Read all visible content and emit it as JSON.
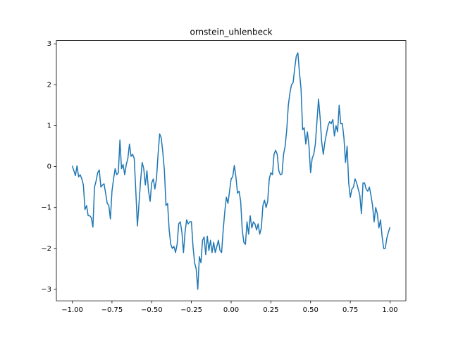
{
  "chart_data": {
    "type": "line",
    "title": "ornstein_uhlenbeck",
    "color": "#1f77b4",
    "xlim": [
      -1.1,
      1.1
    ],
    "ylim": [
      -3.28,
      3.08
    ],
    "xticks": [
      {
        "value": -1,
        "label": "−1.00"
      },
      {
        "value": -0.75,
        "label": "−0.75"
      },
      {
        "value": -0.5,
        "label": "−0.50"
      },
      {
        "value": -0.25,
        "label": "−0.25"
      },
      {
        "value": 0,
        "label": "0.00"
      },
      {
        "value": 0.25,
        "label": "0.25"
      },
      {
        "value": 0.5,
        "label": "0.50"
      },
      {
        "value": 0.75,
        "label": "0.75"
      },
      {
        "value": 1,
        "label": "1.00"
      }
    ],
    "yticks": [
      {
        "value": -3,
        "label": "−3"
      },
      {
        "value": -2,
        "label": "−2"
      },
      {
        "value": -1,
        "label": "−1"
      },
      0,
      1,
      2,
      3
    ],
    "x": [
      -1.0,
      -0.99,
      -0.98,
      -0.97,
      -0.96,
      -0.95,
      -0.94,
      -0.93,
      -0.92,
      -0.91,
      -0.9,
      -0.89,
      -0.88,
      -0.87,
      -0.86,
      -0.85,
      -0.84,
      -0.83,
      -0.82,
      -0.81,
      -0.8,
      -0.79,
      -0.78,
      -0.77,
      -0.76,
      -0.75,
      -0.74,
      -0.73,
      -0.72,
      -0.71,
      -0.7,
      -0.69,
      -0.68,
      -0.67,
      -0.66,
      -0.65,
      -0.64,
      -0.63,
      -0.62,
      -0.61,
      -0.6,
      -0.59,
      -0.58,
      -0.57,
      -0.56,
      -0.55,
      -0.54,
      -0.53,
      -0.52,
      -0.51,
      -0.5,
      -0.49,
      -0.48,
      -0.47,
      -0.46,
      -0.45,
      -0.44,
      -0.43,
      -0.42,
      -0.41,
      -0.4,
      -0.39,
      -0.38,
      -0.37,
      -0.36,
      -0.35,
      -0.34,
      -0.33,
      -0.32,
      -0.31,
      -0.3,
      -0.29,
      -0.28,
      -0.27,
      -0.26,
      -0.25,
      -0.24,
      -0.23,
      -0.22,
      -0.21,
      -0.2,
      -0.19,
      -0.18,
      -0.17,
      -0.16,
      -0.15,
      -0.14,
      -0.13,
      -0.12,
      -0.11,
      -0.1,
      -0.09,
      -0.08,
      -0.07,
      -0.06,
      -0.05,
      -0.04,
      -0.03,
      -0.02,
      -0.01,
      0.0,
      0.01,
      0.02,
      0.03,
      0.04,
      0.05,
      0.06,
      0.07,
      0.08,
      0.09,
      0.1,
      0.11,
      0.12,
      0.13,
      0.14,
      0.15,
      0.16,
      0.17,
      0.18,
      0.19,
      0.2,
      0.21,
      0.22,
      0.23,
      0.24,
      0.25,
      0.26,
      0.27,
      0.28,
      0.29,
      0.3,
      0.31,
      0.32,
      0.33,
      0.34,
      0.35,
      0.36,
      0.37,
      0.38,
      0.39,
      0.4,
      0.41,
      0.42,
      0.43,
      0.44,
      0.45,
      0.46,
      0.47,
      0.48,
      0.49,
      0.5,
      0.51,
      0.52,
      0.53,
      0.54,
      0.55,
      0.56,
      0.57,
      0.58,
      0.59,
      0.6,
      0.61,
      0.62,
      0.63,
      0.64,
      0.65,
      0.66,
      0.67,
      0.68,
      0.69,
      0.7,
      0.71,
      0.72,
      0.73,
      0.74,
      0.75,
      0.76,
      0.77,
      0.78,
      0.79,
      0.8,
      0.81,
      0.82,
      0.83,
      0.84,
      0.85,
      0.86,
      0.87,
      0.88,
      0.89,
      0.9,
      0.91,
      0.92,
      0.93,
      0.94,
      0.95,
      0.96,
      0.97,
      0.98,
      0.99,
      1.0
    ],
    "values": [
      0.02,
      -0.1,
      -0.22,
      0.02,
      -0.25,
      -0.2,
      -0.3,
      -0.45,
      -1.05,
      -0.95,
      -1.2,
      -1.2,
      -1.25,
      -1.48,
      -0.5,
      -0.35,
      -0.15,
      -0.08,
      -0.5,
      -0.45,
      -0.42,
      -0.65,
      -0.9,
      -0.95,
      -1.28,
      -0.6,
      -0.3,
      -0.05,
      -0.2,
      -0.15,
      0.65,
      -0.05,
      0.05,
      -0.2,
      0.05,
      0.2,
      0.55,
      0.25,
      0.3,
      0.2,
      -0.6,
      -1.45,
      -0.9,
      -0.35,
      0.1,
      -0.05,
      -0.45,
      -0.1,
      -0.6,
      -0.85,
      -0.4,
      -0.3,
      -0.55,
      -0.3,
      0.3,
      0.8,
      0.7,
      0.35,
      -0.1,
      -0.95,
      -0.9,
      -1.55,
      -1.9,
      -2.0,
      -1.95,
      -2.1,
      -1.9,
      -1.4,
      -1.35,
      -1.6,
      -2.1,
      -1.6,
      -1.3,
      -1.4,
      -1.35,
      -1.35,
      -1.95,
      -2.35,
      -2.5,
      -3.0,
      -2.2,
      -2.35,
      -1.8,
      -1.72,
      -2.15,
      -1.7,
      -2.05,
      -1.8,
      -2.1,
      -1.85,
      -2.1,
      -1.95,
      -1.8,
      -2.05,
      -2.1,
      -1.55,
      -1.1,
      -0.75,
      -0.9,
      -0.6,
      -0.3,
      -0.25,
      0.03,
      -0.25,
      -0.65,
      -0.6,
      -0.85,
      -1.55,
      -1.85,
      -1.9,
      -1.35,
      -1.65,
      -1.2,
      -1.5,
      -1.35,
      -1.4,
      -1.55,
      -1.4,
      -1.65,
      -1.5,
      -0.95,
      -0.82,
      -1.0,
      -0.85,
      -0.3,
      -0.15,
      -0.2,
      0.3,
      0.4,
      0.3,
      -0.1,
      -0.2,
      -0.18,
      0.3,
      0.5,
      0.9,
      1.5,
      1.8,
      2.0,
      2.05,
      2.4,
      2.7,
      2.78,
      2.3,
      1.9,
      0.9,
      0.95,
      0.55,
      0.85,
      0.5,
      -0.15,
      0.2,
      0.3,
      0.55,
      1.1,
      1.65,
      1.2,
      0.6,
      0.3,
      0.6,
      0.8,
      1.0,
      1.1,
      1.05,
      1.15,
      0.75,
      1.0,
      0.85,
      1.5,
      1.05,
      1.05,
      0.7,
      0.1,
      0.5,
      -0.4,
      -0.75,
      -0.55,
      -0.5,
      -0.3,
      -0.4,
      -0.55,
      -0.7,
      -1.15,
      -0.4,
      -0.4,
      -0.55,
      -0.6,
      -0.5,
      -0.7,
      -0.95,
      -1.35,
      -1.0,
      -1.15,
      -1.5,
      -1.3,
      -1.7,
      -2.0,
      -2.0,
      -1.75,
      -1.6,
      -1.48
    ]
  }
}
